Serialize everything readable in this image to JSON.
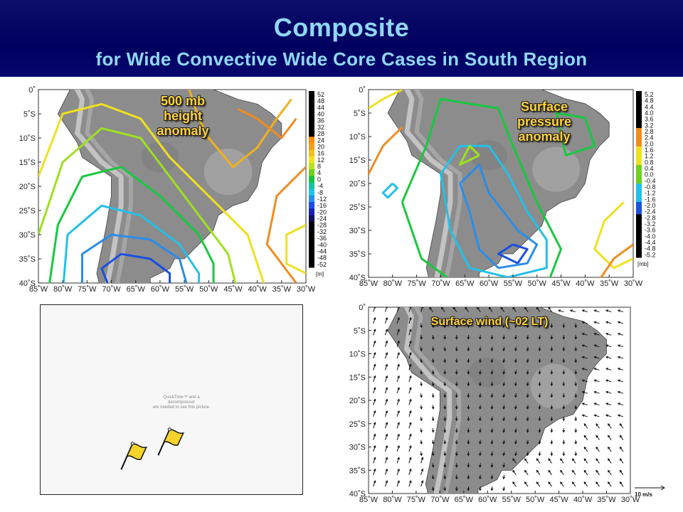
{
  "header": {
    "title": "Composite",
    "subtitle": "for Wide Convective Wide Core Cases in South Region"
  },
  "map_axes": {
    "lat_labels": [
      "0˚",
      "5˚S",
      "10˚S",
      "15˚S",
      "20˚S",
      "25˚S",
      "30˚S",
      "35˚S",
      "40˚S"
    ],
    "lon_labels": [
      "85˚W",
      "80˚W",
      "75˚W",
      "70˚W",
      "65˚W",
      "60˚W",
      "55˚W",
      "50˚W",
      "45˚W",
      "40˚W",
      "35˚W",
      "30˚W"
    ]
  },
  "panels": {
    "height": {
      "label_lines": [
        "500 mb",
        "height",
        "anomaly"
      ],
      "colorbar": {
        "ticks": [
          "52",
          "48",
          "44",
          "40",
          "36",
          "32",
          "28",
          "24",
          "20",
          "16",
          "12",
          "8",
          "4",
          "0",
          "-4",
          "-8",
          "-12",
          "-16",
          "-20",
          "-24",
          "-28",
          "-32",
          "-36",
          "-40",
          "-44",
          "-48",
          "-52"
        ],
        "unit": "[m]"
      }
    },
    "pressure": {
      "label_lines": [
        "Surface",
        "pressure",
        "anomaly"
      ],
      "colorbar": {
        "ticks": [
          "5.2",
          "4.8",
          "4.4",
          "4.0",
          "3.6",
          "3.2",
          "2.8",
          "2.4",
          "2.0",
          "1.6",
          "1.2",
          "0.8",
          "0.4",
          "0.0",
          "-0.4",
          "-0.8",
          "-1.2",
          "-1.6",
          "-2.0",
          "-2.4",
          "-2.8",
          "-3.2",
          "-3.6",
          "-4.0",
          "-4.4",
          "-4.8",
          "-5.2"
        ],
        "unit": "[mb]"
      }
    },
    "wind": {
      "label": "Surface wind (~02 LT)",
      "ref_vector": "10 m/s"
    },
    "movie": {
      "message_lines": [
        "QuickTime™ and a",
        "decompressor",
        "are needed to see this picture."
      ]
    }
  },
  "colors": {
    "header_bg": "#000060",
    "title": "#8fd8f5",
    "label": "#ffd23a",
    "ocean": "#ffffff",
    "land": "#8c8c8c"
  }
}
